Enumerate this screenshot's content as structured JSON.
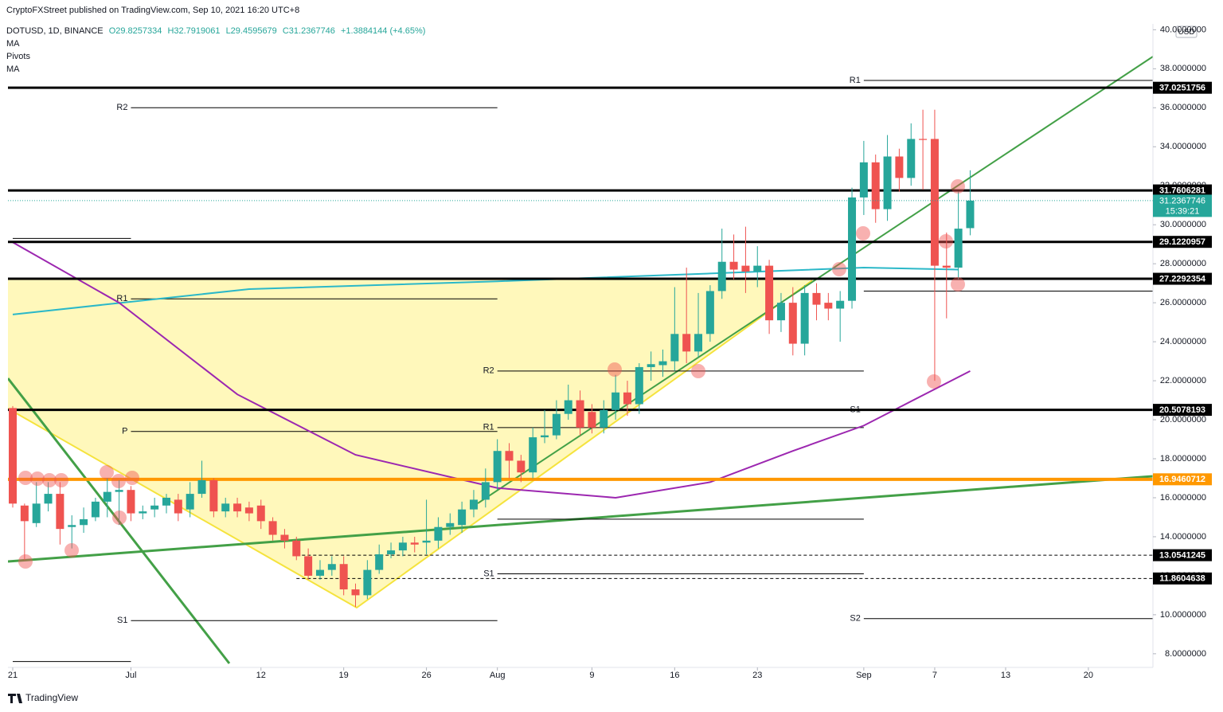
{
  "header": {
    "published": "CryptoFXStreet published on TradingView.com, Sep 10, 2021 16:20 UTC+8",
    "symbol": "DOTUSD, 1D, BINANCE",
    "ohlc": [
      "O29.8257334",
      "H32.7919061",
      "L29.4595679",
      "C31.2367746",
      "+1.3884144 (+4.65%)"
    ],
    "indicators": [
      "MA",
      "Pivots",
      "MA"
    ],
    "currency": "USD",
    "brand": "TradingView"
  },
  "chart_data": {
    "type": "candlestick",
    "up_color": "#26a69a",
    "down_color": "#ef5350",
    "xlim": [
      "2021-06-21",
      "2021-09-26"
    ],
    "ylim": [
      7.3,
      40.3
    ],
    "xticks": [
      {
        "value": "2021-06-21",
        "label": "21"
      },
      {
        "value": "2021-07-01",
        "label": "Jul"
      },
      {
        "value": "2021-07-12",
        "label": "12"
      },
      {
        "value": "2021-07-19",
        "label": "19"
      },
      {
        "value": "2021-07-26",
        "label": "26"
      },
      {
        "value": "2021-08-01",
        "label": "Aug"
      },
      {
        "value": "2021-08-09",
        "label": "9"
      },
      {
        "value": "2021-08-16",
        "label": "16"
      },
      {
        "value": "2021-08-23",
        "label": "23"
      },
      {
        "value": "2021-09-01",
        "label": "Sep"
      },
      {
        "value": "2021-09-07",
        "label": "7"
      },
      {
        "value": "2021-09-13",
        "label": "13"
      },
      {
        "value": "2021-09-20",
        "label": "20"
      }
    ],
    "yticks": [
      {
        "value": 8,
        "label": "8.0000000"
      },
      {
        "value": 10,
        "label": "10.0000000"
      },
      {
        "value": 12,
        "label": "12.0000000"
      },
      {
        "value": 14,
        "label": "14.0000000"
      },
      {
        "value": 16,
        "label": "16.0000000"
      },
      {
        "value": 18,
        "label": "18.0000000"
      },
      {
        "value": 20,
        "label": "20.0000000"
      },
      {
        "value": 22,
        "label": "22.0000000"
      },
      {
        "value": 24,
        "label": "24.0000000"
      },
      {
        "value": 26,
        "label": "26.0000000"
      },
      {
        "value": 28,
        "label": "28.0000000"
      },
      {
        "value": 30,
        "label": "30.0000000"
      },
      {
        "value": 32,
        "label": "32.0000000"
      },
      {
        "value": 34,
        "label": "34.0000000"
      },
      {
        "value": 36,
        "label": "36.0000000"
      },
      {
        "value": 38,
        "label": "38.0000000"
      },
      {
        "value": 40,
        "label": "40.0000000"
      }
    ],
    "candles": {
      "x": [
        "2021-06-21",
        "2021-06-22",
        "2021-06-23",
        "2021-06-24",
        "2021-06-25",
        "2021-06-26",
        "2021-06-27",
        "2021-06-28",
        "2021-06-29",
        "2021-06-30",
        "2021-07-01",
        "2021-07-02",
        "2021-07-03",
        "2021-07-04",
        "2021-07-05",
        "2021-07-06",
        "2021-07-07",
        "2021-07-08",
        "2021-07-09",
        "2021-07-10",
        "2021-07-11",
        "2021-07-12",
        "2021-07-13",
        "2021-07-14",
        "2021-07-15",
        "2021-07-16",
        "2021-07-17",
        "2021-07-18",
        "2021-07-19",
        "2021-07-20",
        "2021-07-21",
        "2021-07-22",
        "2021-07-23",
        "2021-07-24",
        "2021-07-25",
        "2021-07-26",
        "2021-07-27",
        "2021-07-28",
        "2021-07-29",
        "2021-07-30",
        "2021-07-31",
        "2021-08-01",
        "2021-08-02",
        "2021-08-03",
        "2021-08-04",
        "2021-08-05",
        "2021-08-06",
        "2021-08-07",
        "2021-08-08",
        "2021-08-09",
        "2021-08-10",
        "2021-08-11",
        "2021-08-12",
        "2021-08-13",
        "2021-08-14",
        "2021-08-15",
        "2021-08-16",
        "2021-08-17",
        "2021-08-18",
        "2021-08-19",
        "2021-08-20",
        "2021-08-21",
        "2021-08-22",
        "2021-08-23",
        "2021-08-24",
        "2021-08-25",
        "2021-08-26",
        "2021-08-27",
        "2021-08-28",
        "2021-08-29",
        "2021-08-30",
        "2021-08-31",
        "2021-09-01",
        "2021-09-02",
        "2021-09-03",
        "2021-09-04",
        "2021-09-05",
        "2021-09-06",
        "2021-09-07",
        "2021-09-08",
        "2021-09-09",
        "2021-09-10"
      ],
      "open": [
        20.6,
        15.6,
        14.7,
        15.7,
        16.2,
        14.5,
        14.6,
        15.0,
        15.8,
        16.3,
        16.4,
        15.2,
        15.4,
        15.6,
        15.9,
        15.4,
        16.2,
        16.9,
        15.3,
        15.7,
        15.5,
        15.6,
        14.8,
        14.1,
        13.8,
        13.0,
        12.0,
        12.3,
        12.6,
        11.3,
        11.0,
        12.3,
        13.1,
        13.3,
        13.7,
        13.7,
        13.8,
        14.5,
        14.6,
        15.4,
        15.9,
        16.8,
        18.4,
        17.9,
        17.3,
        19.1,
        19.2,
        20.3,
        21.0,
        20.4,
        19.6,
        20.5,
        21.4,
        20.8,
        22.7,
        22.8,
        23.0,
        24.4,
        23.5,
        24.4,
        26.6,
        28.1,
        27.9,
        27.6,
        27.9,
        25.1,
        26.0,
        23.9,
        26.5,
        26.0,
        25.7,
        26.1,
        31.4,
        33.2,
        30.8,
        33.5,
        32.4,
        34.4,
        34.4,
        27.9,
        27.8,
        29.8257334
      ],
      "high": [
        20.7,
        15.7,
        16.8,
        16.8,
        16.8,
        15.1,
        15.5,
        16.0,
        17.0,
        16.9,
        16.6,
        15.6,
        16.0,
        16.2,
        16.2,
        16.8,
        17.9,
        17.0,
        16.0,
        16.0,
        15.8,
        15.9,
        15.0,
        14.4,
        14.0,
        13.4,
        12.8,
        13.0,
        13.0,
        11.6,
        12.8,
        13.6,
        13.7,
        14.0,
        14.0,
        15.9,
        15.0,
        15.2,
        15.8,
        16.4,
        17.5,
        19.0,
        18.8,
        18.2,
        19.6,
        20.5,
        21.0,
        21.8,
        21.5,
        20.8,
        21.0,
        22.3,
        22.0,
        22.9,
        23.5,
        23.6,
        26.8,
        27.8,
        26.5,
        26.9,
        29.8,
        29.5,
        29.9,
        28.9,
        28.2,
        26.5,
        26.8,
        26.9,
        27.0,
        26.5,
        26.6,
        31.9,
        34.3,
        33.6,
        34.6,
        33.9,
        35.2,
        35.9,
        35.9,
        29.6,
        31.7,
        32.7919061
      ],
      "low": [
        15.5,
        12.8,
        14.5,
        15.3,
        13.6,
        13.4,
        14.2,
        14.8,
        15.0,
        14.6,
        14.8,
        14.9,
        15.0,
        15.2,
        14.8,
        15.0,
        16.0,
        15.0,
        15.0,
        15.0,
        14.8,
        14.4,
        13.8,
        13.4,
        12.8,
        11.8,
        11.8,
        12.0,
        11.0,
        10.4,
        10.8,
        12.1,
        12.9,
        13.0,
        13.2,
        13.1,
        13.4,
        14.1,
        14.2,
        15.0,
        15.5,
        16.4,
        17.0,
        16.8,
        17.0,
        18.8,
        19.0,
        20.0,
        19.2,
        19.3,
        19.3,
        20.0,
        20.2,
        20.3,
        22.0,
        22.2,
        22.5,
        22.9,
        23.2,
        24.0,
        26.2,
        27.2,
        26.5,
        26.8,
        24.4,
        24.5,
        23.3,
        23.3,
        25.1,
        25.1,
        24.0,
        25.7,
        30.5,
        30.1,
        30.2,
        31.7,
        32.0,
        31.8,
        22.0,
        25.2,
        27.2,
        29.4595679
      ],
      "close": [
        15.7,
        14.8,
        15.7,
        16.2,
        14.4,
        14.6,
        14.9,
        15.8,
        16.3,
        16.4,
        15.2,
        15.3,
        15.6,
        16.0,
        15.2,
        16.2,
        16.9,
        15.3,
        15.7,
        15.3,
        15.2,
        14.8,
        14.1,
        13.8,
        13.0,
        12.0,
        12.3,
        12.6,
        11.3,
        11.0,
        12.3,
        13.1,
        13.3,
        13.7,
        13.6,
        13.8,
        14.5,
        14.7,
        15.4,
        15.9,
        16.8,
        18.4,
        17.9,
        17.3,
        19.1,
        19.2,
        20.3,
        21.0,
        19.6,
        19.6,
        20.5,
        21.4,
        20.8,
        22.7,
        22.85,
        23.0,
        24.4,
        23.5,
        24.4,
        26.6,
        28.1,
        27.7,
        27.6,
        27.9,
        25.1,
        26.0,
        23.9,
        26.5,
        25.9,
        25.7,
        26.1,
        31.4,
        33.2,
        30.8,
        33.5,
        32.4,
        34.4,
        34.35,
        27.9,
        27.8,
        29.8,
        31.2367746
      ]
    },
    "moving_averages": [
      {
        "color": "#2bb8c8",
        "x": [
          "2021-06-21",
          "2021-07-11",
          "2021-08-01",
          "2021-08-19",
          "2021-09-01",
          "2021-09-09"
        ],
        "values": [
          25.4,
          26.7,
          27.1,
          27.5,
          27.8,
          27.7
        ]
      },
      {
        "color": "#9c27b0",
        "x": [
          "2021-06-21",
          "2021-06-30",
          "2021-07-10",
          "2021-07-20",
          "2021-08-01",
          "2021-08-11",
          "2021-08-19",
          "2021-08-26",
          "2021-09-01",
          "2021-09-10"
        ],
        "values": [
          29.1,
          26.0,
          21.3,
          18.2,
          16.5,
          16.0,
          16.8,
          18.4,
          19.7,
          22.5
        ]
      }
    ],
    "levels": [
      {
        "value": 37.0251756,
        "color": "#000000",
        "style": "solid"
      },
      {
        "value": 31.7606281,
        "color": "#000000",
        "style": "solid"
      },
      {
        "value": 29.1220957,
        "color": "#000000",
        "style": "solid"
      },
      {
        "value": 27.2292354,
        "color": "#000000",
        "style": "solid"
      },
      {
        "value": 20.5078193,
        "color": "#000000",
        "style": "solid"
      },
      {
        "value": 16.9460712,
        "color": "#ff9800",
        "style": "solid"
      },
      {
        "value": 13.0541245,
        "color": "#000000",
        "style": "dashed",
        "start": "2021-07-15"
      },
      {
        "value": 11.8604638,
        "color": "#000000",
        "style": "dashed",
        "start": "2021-07-15"
      }
    ],
    "last_price": {
      "value": 31.2367746,
      "countdown": "15:39:21",
      "color": "#26a69a"
    },
    "pivots": [
      {
        "value": 29.3,
        "start": "2021-06-21",
        "end": "2021-07-01"
      },
      {
        "value": 7.6,
        "start": "2021-06-21",
        "end": "2021-07-01"
      },
      {
        "label": "R2",
        "value": 36.0,
        "start": "2021-07-01",
        "end": "2021-08-01"
      },
      {
        "label": "R1",
        "value": 26.2,
        "start": "2021-07-01",
        "end": "2021-08-01"
      },
      {
        "label": "P",
        "value": 19.4,
        "start": "2021-07-01",
        "end": "2021-08-01"
      },
      {
        "label": "S1",
        "value": 9.7,
        "start": "2021-07-01",
        "end": "2021-08-01"
      },
      {
        "label": "R2",
        "value": 22.5,
        "start": "2021-08-01",
        "end": "2021-09-01"
      },
      {
        "label": "R1",
        "value": 19.6,
        "start": "2021-08-01",
        "end": "2021-09-01"
      },
      {
        "value": 14.9,
        "start": "2021-08-01",
        "end": "2021-09-01"
      },
      {
        "label": "S1",
        "value": 12.1,
        "start": "2021-08-01",
        "end": "2021-09-01"
      },
      {
        "label": "R1",
        "value": 37.4,
        "start": "2021-09-01",
        "end": "2021-09-26"
      },
      {
        "value": 26.6,
        "start": "2021-09-01",
        "end": "2021-09-26"
      },
      {
        "label": "S1",
        "value": 20.5,
        "start": "2021-09-01",
        "end": "2021-09-26"
      },
      {
        "label": "S2",
        "value": 9.8,
        "start": "2021-09-01",
        "end": "2021-09-26"
      }
    ]
  }
}
